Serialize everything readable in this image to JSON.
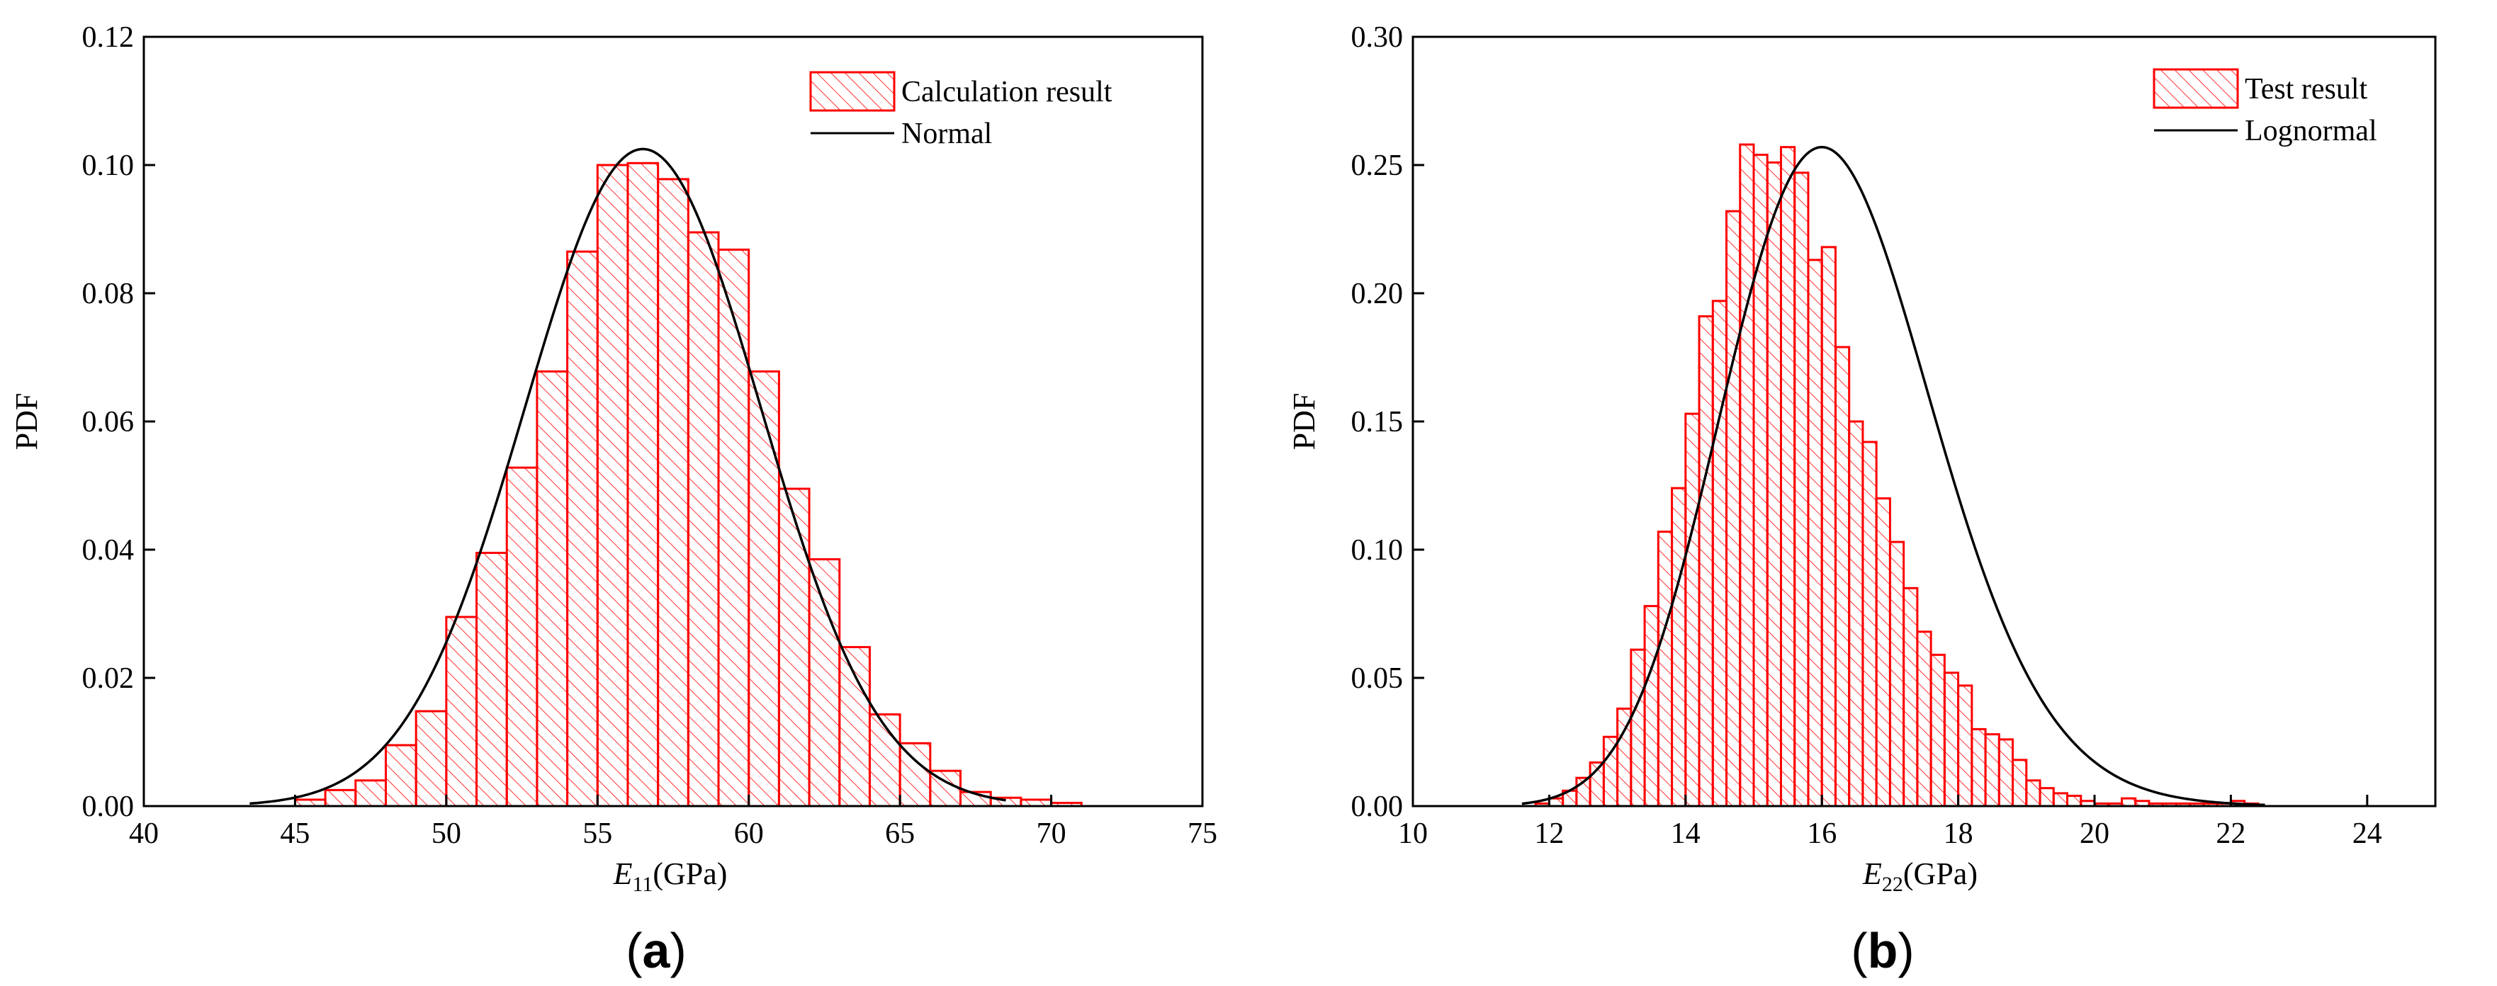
{
  "colors": {
    "bar": "#ff0000",
    "curve": "#000000",
    "axis": "#000000"
  },
  "chart_data": [
    {
      "type": "bar",
      "panel_label": "a",
      "xlabel_symbol": "E",
      "xlabel_sub": "11",
      "xlabel_unit": "(GPa)",
      "ylabel": "PDF",
      "xlim": [
        40,
        75
      ],
      "ylim": [
        0,
        0.12
      ],
      "xticks": [
        40,
        45,
        50,
        55,
        60,
        65,
        70,
        75
      ],
      "yticks": [
        0.0,
        0.02,
        0.04,
        0.06,
        0.08,
        0.1,
        0.12
      ],
      "ytick_decimals": 2,
      "bin_width": 1,
      "bin_starts": [
        45,
        46,
        47,
        48,
        49,
        50,
        51,
        52,
        53,
        54,
        55,
        56,
        57,
        58,
        59,
        60,
        61,
        62,
        63,
        64,
        65,
        66,
        67,
        68,
        69,
        70
      ],
      "values": [
        0.001,
        0.0025,
        0.004,
        0.0095,
        0.0148,
        0.0295,
        0.0395,
        0.0528,
        0.0678,
        0.0865,
        0.1,
        0.1003,
        0.0978,
        0.0895,
        0.0868,
        0.0678,
        0.0495,
        0.0385,
        0.0248,
        0.0143,
        0.0098,
        0.0055,
        0.0022,
        0.0013,
        0.001,
        0.0005
      ],
      "fit": {
        "type": "normal",
        "mean": 56.5,
        "sd": 3.9,
        "peak": 0.1025,
        "range": [
          43.5,
          68.5
        ]
      },
      "legend": [
        {
          "label": "Calculation result",
          "kind": "hatched-box"
        },
        {
          "label": "Normal",
          "kind": "line"
        }
      ]
    },
    {
      "type": "bar",
      "panel_label": "b",
      "xlabel_symbol": "E",
      "xlabel_sub": "22",
      "xlabel_unit": "(GPa)",
      "ylabel": "PDF",
      "xlim": [
        10,
        25
      ],
      "ylim": [
        0,
        0.3
      ],
      "xticks": [
        10,
        12,
        14,
        16,
        18,
        20,
        22,
        24
      ],
      "yticks": [
        0.0,
        0.05,
        0.1,
        0.15,
        0.2,
        0.25,
        0.3
      ],
      "ytick_decimals": 2,
      "bin_width": 0.2,
      "bin_starts": [
        11.8,
        12.0,
        12.2,
        12.4,
        12.6,
        12.8,
        13.0,
        13.2,
        13.4,
        13.6,
        13.8,
        14.0,
        14.2,
        14.4,
        14.6,
        14.8,
        15.0,
        15.2,
        15.4,
        15.6,
        15.8,
        16.0,
        16.2,
        16.4,
        16.6,
        16.8,
        17.0,
        17.2,
        17.4,
        17.6,
        17.8,
        18.0,
        18.2,
        18.4,
        18.6,
        18.8,
        19.0,
        19.2,
        19.4,
        19.6,
        19.8,
        20.0,
        20.2,
        20.4,
        20.6,
        20.8,
        21.0,
        21.2,
        21.4,
        21.6,
        21.8,
        22.0,
        22.2
      ],
      "values": [
        0.001,
        0.003,
        0.006,
        0.011,
        0.017,
        0.027,
        0.038,
        0.061,
        0.078,
        0.107,
        0.124,
        0.153,
        0.191,
        0.197,
        0.232,
        0.258,
        0.254,
        0.251,
        0.257,
        0.247,
        0.213,
        0.218,
        0.179,
        0.15,
        0.142,
        0.12,
        0.103,
        0.085,
        0.068,
        0.059,
        0.052,
        0.047,
        0.03,
        0.028,
        0.026,
        0.018,
        0.01,
        0.007,
        0.005,
        0.004,
        0.002,
        0.001,
        0.001,
        0.003,
        0.002,
        0.001,
        0.001,
        0.001,
        0.001,
        0.001,
        0.001,
        0.002,
        0.001
      ],
      "fit": {
        "type": "lognormal",
        "mode": 16.0,
        "sigma": 0.096,
        "peak": 0.257,
        "range": [
          11.6,
          22.5
        ]
      },
      "legend": [
        {
          "label": "Test result",
          "kind": "hatched-box"
        },
        {
          "label": "Lognormal",
          "kind": "line"
        }
      ]
    }
  ]
}
